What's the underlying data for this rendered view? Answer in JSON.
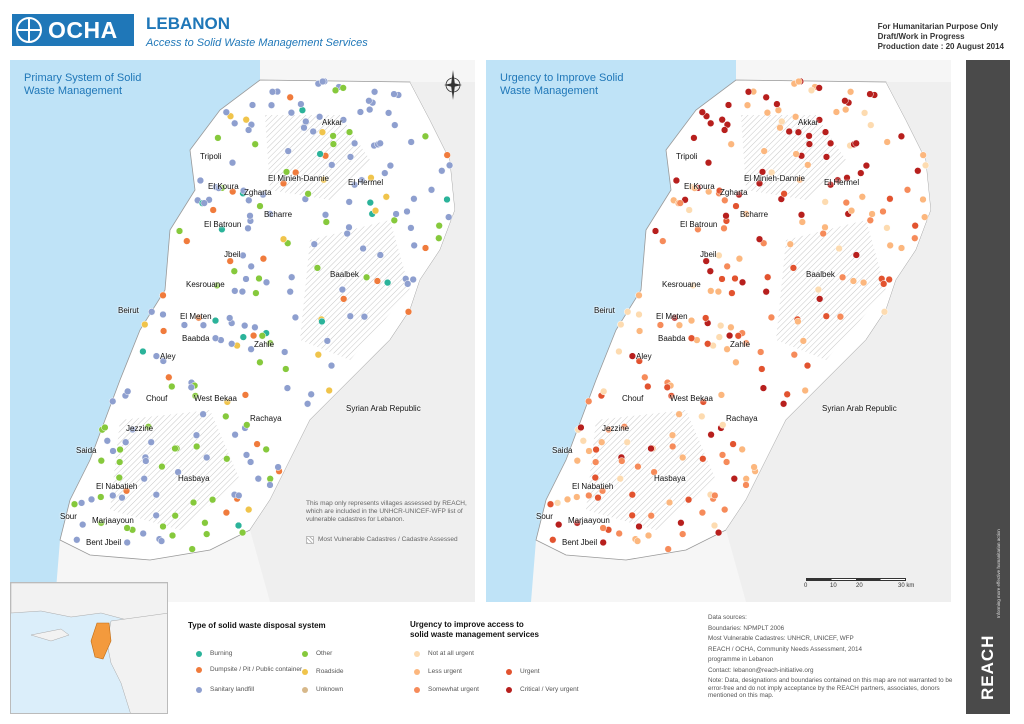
{
  "header": {
    "logo_text": "OCHA",
    "title": "LEBANON",
    "subtitle": "Access to Solid Waste Management Services",
    "disclaimer_line1": "For Humanitarian Purpose Only",
    "disclaimer_line2": "Draft/Work in Progress",
    "disclaimer_line3": "Production date : 20 August 2014"
  },
  "map_left": {
    "title_line1": "Primary System of Solid",
    "title_line2": "Waste Management",
    "note": "This map only represents villages assessed by REACH, which are included in the UNHCR-UNICEF-WFP list of vulnerable cadastres for Lebanon.",
    "hatch_label": "Most Vulnerable Cadastres / Cadastre Assessed"
  },
  "map_right": {
    "title_line1": "Urgency to Improve Solid",
    "title_line2": "Waste Management"
  },
  "cities": {
    "akkar": "Akkar",
    "tripoli": "Tripoli",
    "minieh": "El Minieh-Dannie",
    "hermel": "El Hermel",
    "koura": "El Koura",
    "zgharta": "Zgharta",
    "batroun": "El Batroun",
    "bcharre": "Bcharre",
    "jbeil": "Jbeil",
    "baalbek": "Baalbek",
    "kesrouane": "Kesrouane",
    "beirut": "Beirut",
    "metn": "El Meten",
    "baabda": "Baabda",
    "zahle": "Zahle",
    "aley": "Aley",
    "chouf": "Chouf",
    "westbekaa": "West Bekaa",
    "rachaya": "Rachaya",
    "syria": "Syrian Arab Republic",
    "jezzine": "Jezzine",
    "saida": "Saida",
    "nabatieh": "El Nabatieh",
    "hasbaya": "Hasbaya",
    "sour": "Sour",
    "marjaayoun": "Marjaayoun",
    "bintjbeil": "Bent Jbeil"
  },
  "colors": {
    "sea": "#bfe3f7",
    "land": "#ffffff",
    "hatch": "#c8c8c8",
    "burning": "#2bb39a",
    "dumpsite": "#f07b3c",
    "landfill": "#8e9fcf",
    "other": "#86c93c",
    "roadside": "#f0c44b",
    "unknown": "#d7b88a",
    "not_urgent": "#fddbb0",
    "less_urgent": "#fcb77e",
    "somewhat_urgent": "#f68b5a",
    "urgent": "#e2532f",
    "critical": "#b71f1d",
    "reach_bar": "#4a4a4a"
  },
  "legend_type": {
    "title": "Type of solid waste disposal system",
    "items": [
      {
        "key": "burning",
        "label": "Burning"
      },
      {
        "key": "dumpsite",
        "label": "Dumpsite / Pit / Public container"
      },
      {
        "key": "landfill",
        "label": "Sanitary landfill"
      },
      {
        "key": "other",
        "label": "Other"
      },
      {
        "key": "roadside",
        "label": "Roadside"
      },
      {
        "key": "unknown",
        "label": "Unknown"
      }
    ]
  },
  "legend_urgency": {
    "title_line1": "Urgency to improve access to",
    "title_line2": "solid waste management services",
    "items": [
      {
        "key": "not_urgent",
        "label": "Not at all urgent"
      },
      {
        "key": "less_urgent",
        "label": "Less urgent"
      },
      {
        "key": "somewhat_urgent",
        "label": "Somewhat urgent"
      },
      {
        "key": "urgent",
        "label": "Urgent"
      },
      {
        "key": "critical",
        "label": "Critical / Very urgent"
      }
    ]
  },
  "sources": {
    "heading": "Data sources:",
    "line1": "Boundaries: NPMPLT 2006",
    "line2": "Most Vulnerable Cadastres: UNHCR, UNICEF, WFP",
    "line3": "REACH / OCHA, Community Needs Assessment, 2014",
    "line4": "programme in Lebanon",
    "contact": "Contact: lebanon@reach-initiative.org",
    "note": "Note: Data, designations and boundaries contained on this map are not warranted to be error-free and do not imply acceptance by the REACH partners, associates, donors mentioned on this map."
  },
  "scale": {
    "t0": "0",
    "t1": "10",
    "t2": "20",
    "t3": "30 km"
  },
  "compass": {
    "north": "N"
  },
  "reach": {
    "name": "REACH",
    "tagline": "Informing more effective humanitarian action"
  }
}
